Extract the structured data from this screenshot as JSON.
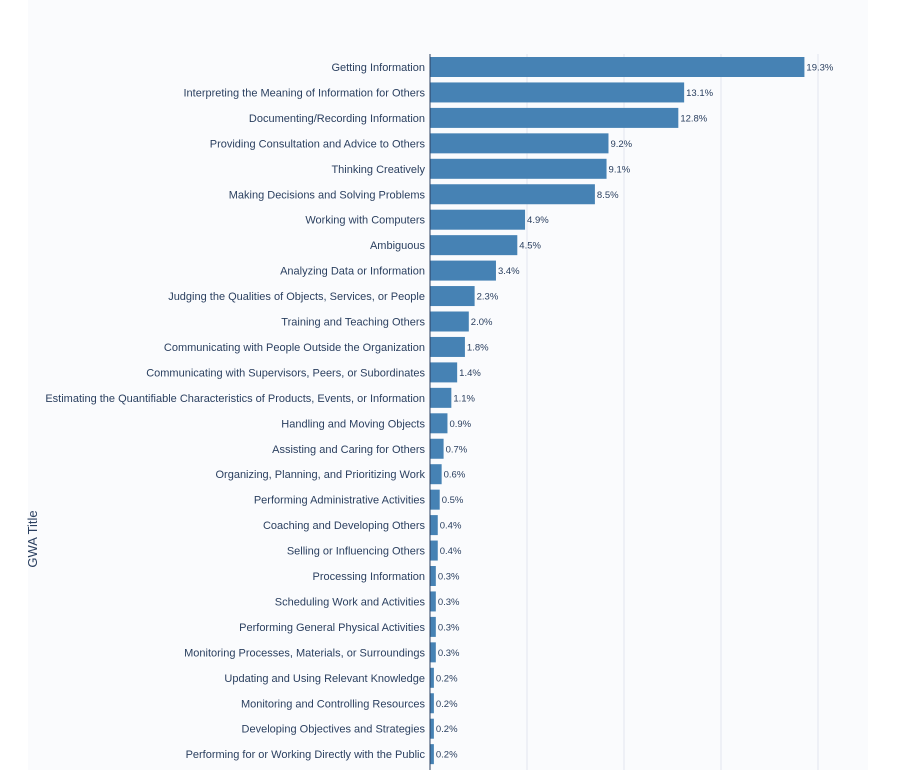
{
  "chart_data": {
    "type": "bar",
    "orientation": "horizontal",
    "title": "",
    "xlabel": "",
    "ylabel": "GWA Title",
    "xlim": [
      0,
      20
    ],
    "grid": true,
    "legend": "none",
    "colors": {
      "bar": "#4682b4",
      "plot_bg": "#fafbfd",
      "grid": "#e3e6ee",
      "text": "#2a3f5f"
    },
    "categories": [
      "Getting Information",
      "Interpreting the Meaning of Information for Others",
      "Documenting/Recording Information",
      "Providing Consultation and Advice to Others",
      "Thinking Creatively",
      "Making Decisions and Solving Problems",
      "Working with Computers",
      "Ambiguous",
      "Analyzing Data or Information",
      "Judging the Qualities of Objects, Services, or People",
      "Training and Teaching Others",
      "Communicating with People Outside the Organization",
      "Communicating with Supervisors, Peers, or Subordinates",
      "Estimating the Quantifiable Characteristics of Products, Events, or Information",
      "Handling and Moving Objects",
      "Assisting and Caring for Others",
      "Organizing, Planning, and Prioritizing Work",
      "Performing Administrative Activities",
      "Coaching and Developing Others",
      "Selling or Influencing Others",
      "Processing Information",
      "Scheduling Work and Activities",
      "Performing General Physical Activities",
      "Monitoring Processes, Materials, or Surroundings",
      "Updating and Using Relevant Knowledge",
      "Monitoring and Controlling Resources",
      "Developing Objectives and Strategies",
      "Performing for or Working Directly with the Public"
    ],
    "values": [
      19.3,
      13.1,
      12.8,
      9.2,
      9.1,
      8.5,
      4.9,
      4.5,
      3.4,
      2.3,
      2.0,
      1.8,
      1.4,
      1.1,
      0.9,
      0.7,
      0.6,
      0.5,
      0.4,
      0.4,
      0.3,
      0.3,
      0.3,
      0.3,
      0.2,
      0.2,
      0.2,
      0.2
    ],
    "labels": [
      "19.3%",
      "13.1%",
      "12.8%",
      "9.2%",
      "9.1%",
      "8.5%",
      "4.9%",
      "4.5%",
      "3.4%",
      "2.3%",
      "2.0%",
      "1.8%",
      "1.4%",
      "1.1%",
      "0.9%",
      "0.7%",
      "0.6%",
      "0.5%",
      "0.4%",
      "0.4%",
      "0.3%",
      "0.3%",
      "0.3%",
      "0.3%",
      "0.2%",
      "0.2%",
      "0.2%",
      "0.2%"
    ]
  }
}
